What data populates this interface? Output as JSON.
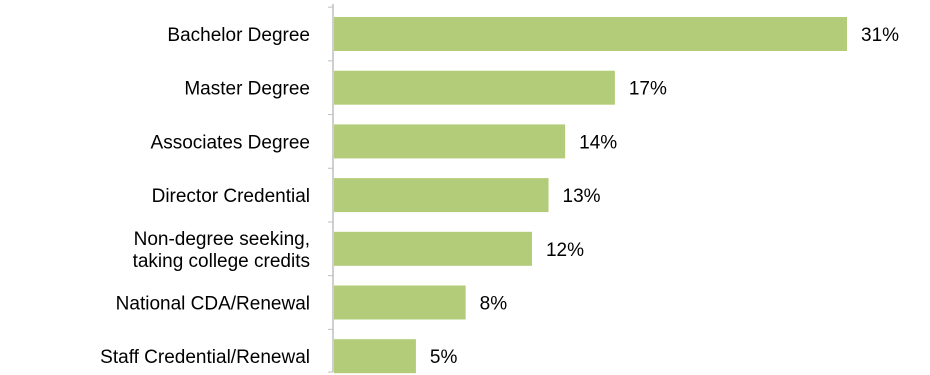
{
  "chart_data": {
    "type": "bar",
    "orientation": "horizontal",
    "categories": [
      [
        "Bachelor Degree"
      ],
      [
        "Master Degree"
      ],
      [
        "Associates Degree"
      ],
      [
        "Director Credential"
      ],
      [
        "Non-degree seeking,",
        "taking college credits"
      ],
      [
        "National CDA/Renewal"
      ],
      [
        "Staff Credential/Renewal"
      ]
    ],
    "values": [
      31,
      17,
      14,
      13,
      12,
      8,
      5
    ],
    "value_labels": [
      "31%",
      "17%",
      "14%",
      "13%",
      "12%",
      "8%",
      "5%"
    ],
    "title": "",
    "xlabel": "",
    "ylabel": "",
    "xlim": [
      0,
      31
    ],
    "grid": false,
    "legend": "none",
    "bar_color": "#b2cc7a",
    "axis_color": "#bfbfbf"
  }
}
